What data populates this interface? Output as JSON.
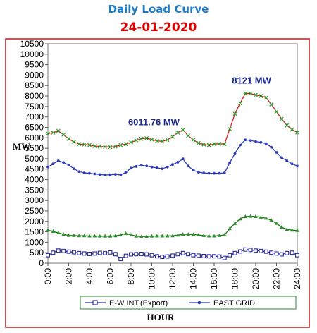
{
  "chart_data": {
    "type": "line",
    "title": "Daily Load Curve",
    "subtitle": "24-01-2020",
    "xlabel": "HOUR",
    "ylabel": "MW",
    "ylim": [
      0,
      10500
    ],
    "yticks": [
      0,
      500,
      1000,
      1500,
      2000,
      2500,
      3000,
      3500,
      4000,
      4500,
      5000,
      5500,
      6000,
      6500,
      7000,
      7500,
      8000,
      8500,
      9000,
      9500,
      10000,
      10500
    ],
    "xlim": [
      0,
      24
    ],
    "xticks": [
      "0:00",
      "2:00",
      "4:00",
      "6:00",
      "8:00",
      "10:00",
      "12:00",
      "14:00",
      "16:00",
      "18:00",
      "20:00",
      "22:00",
      "24:00"
    ],
    "x": [
      0,
      0.5,
      1,
      1.5,
      2,
      2.5,
      3,
      3.5,
      4,
      4.5,
      5,
      5.5,
      6,
      6.5,
      7,
      7.5,
      8,
      8.5,
      9,
      9.5,
      10,
      10.5,
      11,
      11.5,
      12,
      12.5,
      13,
      13.5,
      14,
      14.5,
      15,
      15.5,
      16,
      16.5,
      17,
      17.5,
      18,
      18.5,
      19,
      19.5,
      20,
      20.5,
      21,
      21.5,
      22,
      22.5,
      23,
      23.5,
      24
    ],
    "series": [
      {
        "name": "",
        "color": "#d42020",
        "marker": "x",
        "marker_color": "#2a9d2a",
        "values": [
          6200,
          6250,
          6330,
          6150,
          5950,
          5800,
          5700,
          5680,
          5650,
          5600,
          5580,
          5570,
          5560,
          5580,
          5650,
          5700,
          5780,
          5880,
          5950,
          5980,
          5920,
          5850,
          5830,
          5900,
          6050,
          6250,
          6380,
          6100,
          5900,
          5750,
          5680,
          5650,
          5700,
          5710,
          5700,
          6420,
          7150,
          7650,
          8121,
          8120,
          8050,
          8000,
          7920,
          7600,
          7250,
          6900,
          6600,
          6400,
          6250
        ]
      },
      {
        "name": "EAST GRID",
        "color": "#2f3fb8",
        "marker": "dot",
        "marker_color": "#2f3fb8",
        "values": [
          4600,
          4750,
          4900,
          4820,
          4700,
          4520,
          4380,
          4320,
          4300,
          4270,
          4240,
          4220,
          4230,
          4250,
          4220,
          4350,
          4550,
          4630,
          4680,
          4650,
          4600,
          4560,
          4520,
          4600,
          4720,
          4830,
          4990,
          4650,
          4450,
          4350,
          4320,
          4300,
          4300,
          4300,
          4320,
          4800,
          5250,
          5650,
          5900,
          5870,
          5820,
          5780,
          5720,
          5550,
          5300,
          5050,
          4900,
          4750,
          4650
        ]
      },
      {
        "name": "",
        "color": "#1e6e1e",
        "marker": "triangle",
        "marker_color": "#2f8f2f",
        "values": [
          1580,
          1520,
          1450,
          1380,
          1330,
          1320,
          1310,
          1310,
          1300,
          1300,
          1290,
          1290,
          1290,
          1310,
          1350,
          1420,
          1360,
          1290,
          1270,
          1280,
          1290,
          1300,
          1300,
          1300,
          1310,
          1340,
          1380,
          1380,
          1370,
          1350,
          1320,
          1300,
          1300,
          1320,
          1350,
          1650,
          1900,
          2120,
          2230,
          2240,
          2230,
          2200,
          2150,
          2050,
          1900,
          1720,
          1620,
          1580,
          1560
        ]
      },
      {
        "name": "E-W INT.(Export)",
        "color": "#2a2a9a",
        "marker": "square",
        "marker_color": "#2a2a9a",
        "values": [
          380,
          500,
          600,
          580,
          550,
          520,
          480,
          460,
          440,
          460,
          490,
          480,
          510,
          430,
          200,
          350,
          420,
          430,
          440,
          420,
          380,
          330,
          300,
          320,
          360,
          430,
          480,
          430,
          380,
          360,
          340,
          330,
          330,
          320,
          250,
          380,
          480,
          560,
          650,
          630,
          600,
          580,
          550,
          500,
          460,
          420,
          480,
          500,
          380
        ]
      }
    ],
    "annotations": [
      {
        "text": "6011.76 MW",
        "x": 10.2,
        "y": 6600
      },
      {
        "text": "8121 MW",
        "x": 19.6,
        "y": 8600
      }
    ],
    "grid": false,
    "legend": "bottom"
  }
}
